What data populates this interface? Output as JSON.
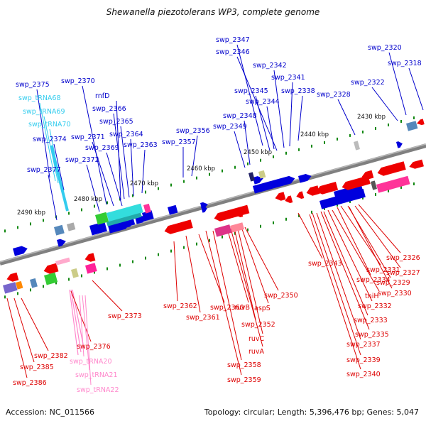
{
  "title": "Shewanella piezotolerans WP3, complete genome",
  "footer": {
    "accession": "Accession: NC_011566",
    "stats": "Topology: circular; Length: 5,396,476 bp; Genes: 5,047"
  },
  "colors": {
    "forward_cds": "#0000dd",
    "reverse_cds": "#ee0000",
    "rna": "#33ccee",
    "trna_reverse": "#ff88cc",
    "backbone": "#808080",
    "tick": "#118811",
    "forward_label": "#0000cc",
    "reverse_label": "#dd0000"
  },
  "scale_labels": [
    "2490 kbp",
    "2480 kbp",
    "2470 kbp",
    "2460 kbp",
    "2450 kbp",
    "2440 kbp",
    "2430 kbp"
  ],
  "forward_labels": [
    "swp_2375",
    "swp_tRNA68",
    "swp_tRNA69",
    "swp_tRNA70",
    "swp_2374",
    "swp_2377",
    "swp_2370",
    "rnfD",
    "swp_2366",
    "swp_2365",
    "swp_2364",
    "swp_2371",
    "swp_2369",
    "swp_2363",
    "swp_2372",
    "swp_2356",
    "swp_2357",
    "swp_2347",
    "swp_2346",
    "swp_2342",
    "swp_2341",
    "swp_2345",
    "swp_2344",
    "swp_2338",
    "swp_2348",
    "swp_2349",
    "swp_2328",
    "swp_2320",
    "swp_2318",
    "swp_2322"
  ],
  "reverse_labels": [
    "swp_2326",
    "swp_2327",
    "swp_2331",
    "swp_2329",
    "swp_2334",
    "swp_2330",
    "thiH",
    "swp_2332",
    "swp_2333",
    "swp_2335",
    "swp_2337",
    "swp_2339",
    "swp_2340",
    "swp_2343",
    "swp_2350",
    "aspS",
    "ruvB",
    "swp_2352",
    "ruvC",
    "ruvA",
    "swp_2358",
    "swp_2359",
    "swp_2360",
    "swp_2361",
    "swp_2362",
    "swp_2373",
    "swp_2376",
    "swp_2382",
    "swp_2385",
    "swp_2386",
    "swp_tRNA20",
    "swp_tRNA21",
    "swp_tRNA22"
  ]
}
